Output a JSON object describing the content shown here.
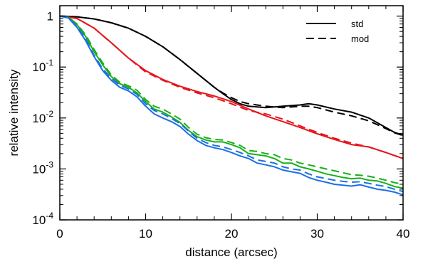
{
  "chart_data": {
    "type": "line",
    "title": "",
    "xlabel": "distance (arcsec)",
    "ylabel": "relative intensity",
    "xlim": [
      0,
      40
    ],
    "ylim": [
      0.0001,
      1.6
    ],
    "yscale": "log",
    "grid": false,
    "legend": {
      "placement": "top-right"
    },
    "x_ticks": [
      {
        "value": 0,
        "label": "0"
      },
      {
        "value": 10,
        "label": "10"
      },
      {
        "value": 20,
        "label": "20"
      },
      {
        "value": 30,
        "label": "30"
      },
      {
        "value": 40,
        "label": "40"
      }
    ],
    "y_ticks": [
      {
        "value": 1,
        "base": "1",
        "exp": ""
      },
      {
        "value": 0.1,
        "base": "10",
        "exp": "-1"
      },
      {
        "value": 0.01,
        "base": "10",
        "exp": "-2"
      },
      {
        "value": 0.001,
        "base": "10",
        "exp": "-3"
      },
      {
        "value": 0.0001,
        "base": "10",
        "exp": "-4"
      }
    ],
    "line_styles": [
      {
        "name": "std",
        "dash": "solid"
      },
      {
        "name": "mod",
        "dash": "dashed"
      }
    ],
    "series": [
      {
        "color": "#000000",
        "dash": "solid",
        "x": [
          0,
          2,
          4,
          6,
          8,
          10,
          12,
          14,
          16,
          18,
          19,
          20,
          21,
          22,
          24,
          26,
          28,
          29,
          30,
          32,
          34,
          36,
          38,
          39,
          40
        ],
        "y": [
          1.0,
          0.97,
          0.88,
          0.74,
          0.58,
          0.4,
          0.25,
          0.14,
          0.075,
          0.04,
          0.03,
          0.023,
          0.019,
          0.017,
          0.016,
          0.017,
          0.018,
          0.019,
          0.018,
          0.015,
          0.013,
          0.01,
          0.0065,
          0.0052,
          0.0046
        ]
      },
      {
        "color": "#000000",
        "dash": "dashed",
        "x": [
          0,
          2,
          4,
          6,
          8,
          10,
          12,
          14,
          16,
          18,
          19,
          20,
          21,
          22,
          24,
          26,
          28,
          29,
          30,
          32,
          34,
          36,
          38,
          39,
          40
        ],
        "y": [
          1.0,
          0.97,
          0.88,
          0.74,
          0.58,
          0.4,
          0.25,
          0.14,
          0.075,
          0.04,
          0.031,
          0.025,
          0.021,
          0.019,
          0.017,
          0.016,
          0.017,
          0.017,
          0.016,
          0.013,
          0.011,
          0.0088,
          0.0062,
          0.0051,
          0.0045
        ]
      },
      {
        "color": "#e8141c",
        "dash": "solid",
        "x": [
          0,
          2,
          4,
          6,
          8,
          10,
          12,
          14,
          16,
          18,
          20,
          22,
          24,
          26,
          28,
          30,
          32,
          34,
          36,
          38,
          40
        ],
        "y": [
          1.0,
          0.9,
          0.58,
          0.3,
          0.15,
          0.085,
          0.057,
          0.042,
          0.033,
          0.027,
          0.021,
          0.015,
          0.011,
          0.0085,
          0.0065,
          0.0049,
          0.0038,
          0.003,
          0.0027,
          0.0021,
          0.0016
        ]
      },
      {
        "color": "#e8141c",
        "dash": "dashed",
        "x": [
          0,
          2,
          4,
          6,
          8,
          10,
          12,
          14,
          16,
          18,
          20,
          22,
          24,
          26,
          28,
          30,
          32,
          34,
          36,
          38,
          40
        ],
        "y": [
          1.0,
          0.9,
          0.58,
          0.3,
          0.15,
          0.08,
          0.055,
          0.04,
          0.031,
          0.025,
          0.019,
          0.014,
          0.012,
          0.0095,
          0.007,
          0.0052,
          0.004,
          0.0032,
          0.0027,
          0.0021,
          0.0016
        ]
      },
      {
        "color": "#18b018",
        "dash": "solid",
        "x": [
          0,
          1,
          2,
          3,
          4,
          5,
          6,
          7,
          8,
          9,
          10,
          11,
          12,
          13,
          14,
          15,
          16,
          17,
          18,
          19,
          20,
          21,
          22,
          23,
          24,
          25,
          26,
          27,
          28,
          29,
          30,
          31,
          32,
          33,
          34,
          35,
          36,
          37,
          38,
          39,
          40
        ],
        "y": [
          1.0,
          0.95,
          0.68,
          0.4,
          0.2,
          0.11,
          0.065,
          0.047,
          0.04,
          0.031,
          0.021,
          0.015,
          0.013,
          0.0105,
          0.0082,
          0.0057,
          0.0043,
          0.0037,
          0.0034,
          0.0034,
          0.003,
          0.0026,
          0.002,
          0.0019,
          0.0018,
          0.0016,
          0.0013,
          0.0013,
          0.0011,
          0.001,
          0.0009,
          0.0008,
          0.00074,
          0.00068,
          0.00064,
          0.00066,
          0.0006,
          0.00058,
          0.00052,
          0.00045,
          0.00042
        ]
      },
      {
        "color": "#18b018",
        "dash": "dashed",
        "x": [
          0,
          1,
          2,
          3,
          4,
          5,
          6,
          7,
          8,
          9,
          10,
          11,
          12,
          13,
          14,
          15,
          16,
          17,
          18,
          19,
          20,
          21,
          22,
          23,
          24,
          25,
          26,
          27,
          28,
          29,
          30,
          31,
          32,
          33,
          34,
          35,
          36,
          37,
          38,
          39,
          40
        ],
        "y": [
          1.0,
          0.95,
          0.7,
          0.43,
          0.22,
          0.12,
          0.07,
          0.05,
          0.043,
          0.035,
          0.023,
          0.017,
          0.015,
          0.012,
          0.0095,
          0.0065,
          0.0048,
          0.0041,
          0.0038,
          0.0037,
          0.0033,
          0.0029,
          0.0023,
          0.0022,
          0.002,
          0.0019,
          0.0016,
          0.0015,
          0.0013,
          0.0012,
          0.0011,
          0.001,
          0.00092,
          0.00084,
          0.00077,
          0.00075,
          0.00072,
          0.00066,
          0.0006,
          0.00054,
          0.0005
        ]
      },
      {
        "color": "#1c6ee6",
        "dash": "solid",
        "x": [
          0,
          1,
          2,
          3,
          4,
          5,
          6,
          7,
          8,
          9,
          10,
          11,
          12,
          13,
          14,
          15,
          16,
          17,
          18,
          19,
          20,
          21,
          22,
          23,
          24,
          25,
          26,
          27,
          28,
          29,
          30,
          31,
          32,
          33,
          34,
          35,
          36,
          37,
          38,
          39,
          40
        ],
        "y": [
          1.0,
          0.92,
          0.6,
          0.33,
          0.16,
          0.085,
          0.055,
          0.04,
          0.034,
          0.026,
          0.017,
          0.012,
          0.01,
          0.0085,
          0.0068,
          0.0048,
          0.0036,
          0.0029,
          0.0026,
          0.0024,
          0.0021,
          0.0018,
          0.0016,
          0.0013,
          0.0012,
          0.0011,
          0.00095,
          0.00088,
          0.00082,
          0.00068,
          0.0006,
          0.00055,
          0.0005,
          0.00048,
          0.00046,
          0.00049,
          0.00044,
          0.0004,
          0.00038,
          0.00035,
          0.00031
        ]
      },
      {
        "color": "#1c6ee6",
        "dash": "dashed",
        "x": [
          0,
          1,
          2,
          3,
          4,
          5,
          6,
          7,
          8,
          9,
          10,
          11,
          12,
          13,
          14,
          15,
          16,
          17,
          18,
          19,
          20,
          21,
          22,
          23,
          24,
          25,
          26,
          27,
          28,
          29,
          30,
          31,
          32,
          33,
          34,
          35,
          36,
          37,
          38,
          39,
          40
        ],
        "y": [
          1.0,
          0.93,
          0.63,
          0.36,
          0.17,
          0.092,
          0.06,
          0.044,
          0.037,
          0.029,
          0.019,
          0.014,
          0.012,
          0.0098,
          0.0078,
          0.0055,
          0.004,
          0.0033,
          0.0029,
          0.0027,
          0.0024,
          0.0021,
          0.0018,
          0.0015,
          0.0014,
          0.0013,
          0.0011,
          0.001,
          0.00095,
          0.0008,
          0.0007,
          0.00065,
          0.0006,
          0.00057,
          0.00055,
          0.00056,
          0.00052,
          0.00048,
          0.00045,
          0.0004,
          0.00036
        ]
      }
    ]
  }
}
